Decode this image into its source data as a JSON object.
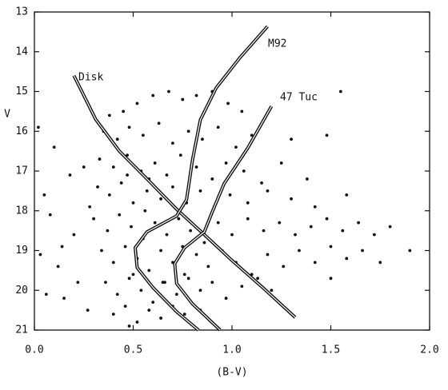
{
  "chart_data": {
    "type": "scatter",
    "xlabel": "(B-V)",
    "ylabel": "V",
    "xlim": [
      0,
      2
    ],
    "ylim": [
      21,
      13
    ],
    "xticks": [
      {
        "value": 0,
        "label": "0.0"
      },
      0.5,
      {
        "value": 1,
        "label": "1.0"
      },
      1.5,
      {
        "value": 2,
        "label": "2.0"
      }
    ],
    "yticks": [
      13,
      14,
      15,
      16,
      17,
      18,
      19,
      20,
      21
    ],
    "color": "#111111",
    "points": {
      "x": [
        0.02,
        0.05,
        0.08,
        0.03,
        0.1,
        0.12,
        0.06,
        0.15,
        0.18,
        0.2,
        0.22,
        0.25,
        0.27,
        0.14,
        0.28,
        0.38,
        0.45,
        0.52,
        0.6,
        0.68,
        0.75,
        0.82,
        0.9,
        0.98,
        1.05,
        0.35,
        0.42,
        0.48,
        0.55,
        0.63,
        0.7,
        0.78,
        0.85,
        0.93,
        1.02,
        1.1,
        0.33,
        0.4,
        0.47,
        0.54,
        0.61,
        0.67,
        0.74,
        0.82,
        0.9,
        0.97,
        1.06,
        1.15,
        1.25,
        0.32,
        0.38,
        0.44,
        0.5,
        0.57,
        0.64,
        0.7,
        0.77,
        0.84,
        0.91,
        0.99,
        1.08,
        1.18,
        1.3,
        1.42,
        0.3,
        0.37,
        0.43,
        0.49,
        0.55,
        0.61,
        0.67,
        0.73,
        0.79,
        0.86,
        0.93,
        1.0,
        1.08,
        1.16,
        1.24,
        1.32,
        1.4,
        1.48,
        1.56,
        1.64,
        1.72,
        1.8,
        0.34,
        0.4,
        0.46,
        0.52,
        0.58,
        0.64,
        0.7,
        0.76,
        0.82,
        0.88,
        0.95,
        1.02,
        1.1,
        1.18,
        1.26,
        1.34,
        1.42,
        1.5,
        1.58,
        1.66,
        1.75,
        1.9,
        0.36,
        0.42,
        0.48,
        0.54,
        0.6,
        0.66,
        0.72,
        0.78,
        0.84,
        0.9,
        0.97,
        1.05,
        1.13,
        1.2,
        0.4,
        0.46,
        0.52,
        0.58,
        0.64,
        0.7,
        0.76,
        0.84,
        0.48,
        1.48,
        1.3,
        1.55,
        1.38,
        1.58,
        1.5,
        0.58,
        0.47,
        0.56,
        0.65,
        0.5,
        0.75
      ],
      "y": [
        15.9,
        17.6,
        18.1,
        19.1,
        16.4,
        19.4,
        20.1,
        20.2,
        17.1,
        18.6,
        19.8,
        16.9,
        20.5,
        18.9,
        17.9,
        15.6,
        15.5,
        15.3,
        15.1,
        15.0,
        15.2,
        15.1,
        15.0,
        15.3,
        15.5,
        16.0,
        16.2,
        15.9,
        16.1,
        15.8,
        16.3,
        16.0,
        16.2,
        15.9,
        16.4,
        16.1,
        16.7,
        16.9,
        16.6,
        17.0,
        16.8,
        17.1,
        16.6,
        16.9,
        17.2,
        16.8,
        17.0,
        17.3,
        16.8,
        17.4,
        17.6,
        17.3,
        17.8,
        17.5,
        17.7,
        17.4,
        17.8,
        17.5,
        17.9,
        17.6,
        17.8,
        17.5,
        17.7,
        17.9,
        18.2,
        18.5,
        18.1,
        18.4,
        18.7,
        18.3,
        18.6,
        18.2,
        18.5,
        18.8,
        18.3,
        18.6,
        18.2,
        18.5,
        18.3,
        18.6,
        18.4,
        18.2,
        18.5,
        18.3,
        18.6,
        18.4,
        19.0,
        19.3,
        18.9,
        19.2,
        19.5,
        19.0,
        19.3,
        19.6,
        19.1,
        19.4,
        19.0,
        19.3,
        19.6,
        19.1,
        19.4,
        19.0,
        19.3,
        18.9,
        19.2,
        19.0,
        19.3,
        19.0,
        19.8,
        20.1,
        19.7,
        20.0,
        20.3,
        19.8,
        20.1,
        19.7,
        20.0,
        19.8,
        20.2,
        19.9,
        19.7,
        20.0,
        20.6,
        20.4,
        20.8,
        20.5,
        20.7,
        20.4,
        20.6,
        20.5,
        20.9,
        16.1,
        16.2,
        15.0,
        17.2,
        17.6,
        19.7,
        17.2,
        17.1,
        18.0,
        19.8,
        19.6,
        18.9
      ]
    },
    "series": [
      {
        "name": "Disk",
        "x": [
          0.2,
          0.31,
          0.43,
          0.57,
          0.72,
          0.86,
          1.0,
          1.16,
          1.32
        ],
        "values": [
          14.6,
          15.7,
          16.5,
          17.2,
          17.96,
          18.6,
          19.25,
          19.95,
          20.68
        ]
      },
      {
        "name": "M92",
        "x": [
          1.18,
          1.04,
          0.92,
          0.84,
          0.8,
          0.77,
          0.72,
          0.57,
          0.51,
          0.52,
          0.6,
          0.72,
          0.83
        ],
        "values": [
          13.36,
          14.15,
          14.91,
          15.71,
          16.72,
          17.72,
          18.13,
          18.53,
          18.93,
          19.43,
          19.93,
          20.54,
          21.0
        ]
      },
      {
        "name": "47 Tuc",
        "x": [
          1.2,
          1.08,
          0.96,
          0.9,
          0.86,
          0.76,
          0.71,
          0.72,
          0.8,
          0.94
        ],
        "values": [
          15.37,
          16.42,
          17.32,
          18.03,
          18.53,
          18.93,
          19.33,
          19.83,
          20.34,
          21.0
        ]
      }
    ]
  }
}
